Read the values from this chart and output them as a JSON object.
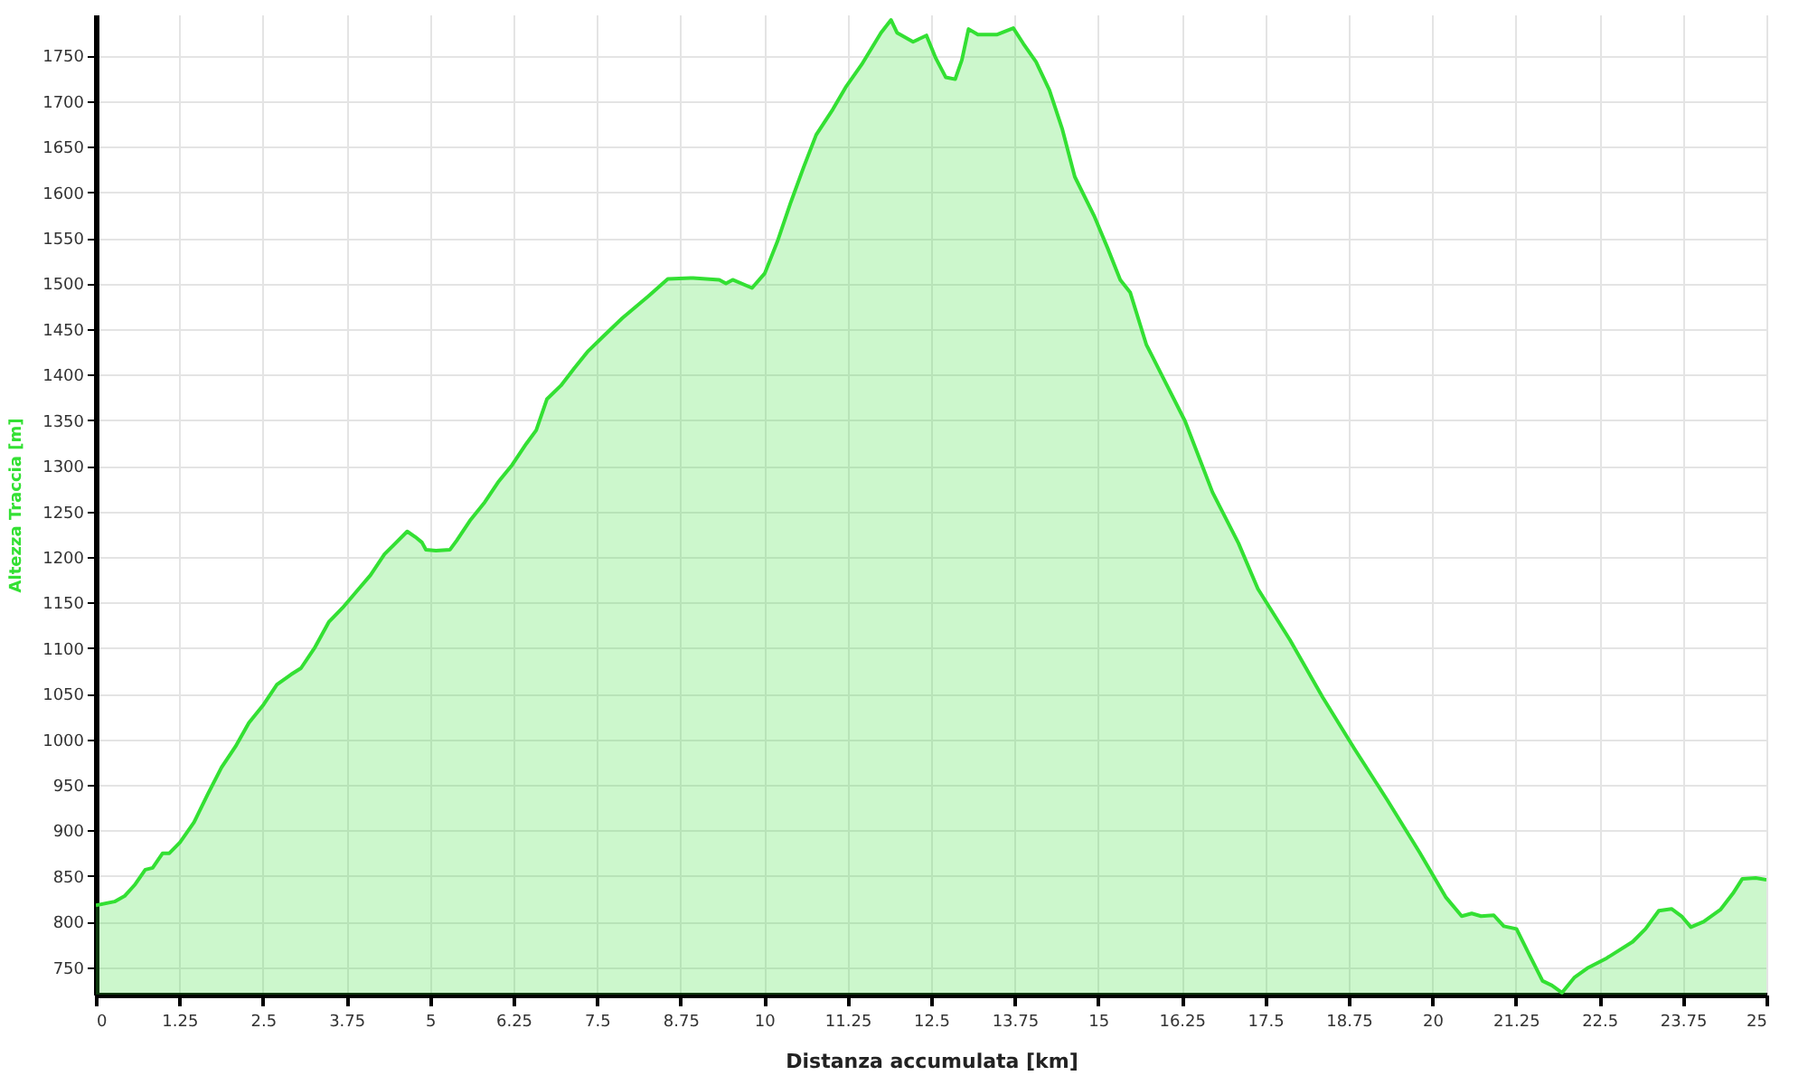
{
  "chart_data": {
    "type": "area",
    "xlabel": "Distanza accumulata [km]",
    "ylabel": "Altezza Traccia [m]",
    "color": "#33e033",
    "x": [
      0,
      0.28,
      0.43,
      0.59,
      0.74,
      0.85,
      1.0,
      1.1,
      1.26,
      1.47,
      1.67,
      1.88,
      2.09,
      2.29,
      2.5,
      2.71,
      2.92,
      3.07,
      3.28,
      3.49,
      3.69,
      3.9,
      4.11,
      4.32,
      4.47,
      4.66,
      4.78,
      4.88,
      4.94,
      5.09,
      5.3,
      5.4,
      5.61,
      5.82,
      6.02,
      6.23,
      6.44,
      6.59,
      6.75,
      6.96,
      7.16,
      7.37,
      7.58,
      7.88,
      8.27,
      8.56,
      8.94,
      9.33,
      9.43,
      9.53,
      9.82,
      10.01,
      10.2,
      10.4,
      10.59,
      10.78,
      11.03,
      11.22,
      11.46,
      11.75,
      11.9,
      11.99,
      12.23,
      12.43,
      12.57,
      12.72,
      12.86,
      12.96,
      13.06,
      13.2,
      13.49,
      13.73,
      13.88,
      14.07,
      14.27,
      14.46,
      14.65,
      14.94,
      15.14,
      15.33,
      15.48,
      15.72,
      16.01,
      16.3,
      16.71,
      17.1,
      17.39,
      17.87,
      18.36,
      18.84,
      19.33,
      19.81,
      20.2,
      20.44,
      20.59,
      20.73,
      20.92,
      21.07,
      21.26,
      21.45,
      21.65,
      21.79,
      21.94,
      22.13,
      22.32,
      22.61,
      23.0,
      23.19,
      23.39,
      23.58,
      23.73,
      23.87,
      24.06,
      24.31,
      24.5,
      24.64,
      24.84,
      25
    ],
    "values": [
      818,
      822,
      828,
      841,
      857,
      859,
      875,
      875,
      887,
      909,
      939,
      969,
      992,
      1018,
      1037,
      1060,
      1071,
      1078,
      1101,
      1129,
      1144,
      1162,
      1180,
      1203,
      1214,
      1228,
      1222,
      1216,
      1208,
      1207,
      1208,
      1218,
      1241,
      1260,
      1282,
      1301,
      1324,
      1339,
      1373,
      1388,
      1407,
      1426,
      1441,
      1462,
      1486,
      1505,
      1506,
      1504,
      1500,
      1504,
      1495,
      1511,
      1546,
      1589,
      1627,
      1663,
      1691,
      1715,
      1740,
      1775,
      1789,
      1775,
      1765,
      1772,
      1747,
      1726,
      1724,
      1745,
      1779,
      1773,
      1773,
      1780,
      1763,
      1743,
      1712,
      1670,
      1617,
      1574,
      1539,
      1504,
      1490,
      1433,
      1391,
      1349,
      1271,
      1215,
      1165,
      1109,
      1046,
      989,
      933,
      876,
      827,
      806,
      809,
      806,
      807,
      795,
      792,
      764,
      735,
      730,
      722,
      739,
      749,
      760,
      778,
      792,
      812,
      814,
      806,
      794,
      800,
      813,
      831,
      847,
      848,
      846
    ],
    "xlim": [
      0,
      25
    ],
    "xticks": [
      0,
      1.25,
      2.5,
      3.75,
      5,
      6.25,
      7.5,
      8.75,
      10,
      11.25,
      12.5,
      13.75,
      15,
      16.25,
      17.5,
      18.75,
      20,
      21.25,
      22.5,
      23.75,
      25
    ],
    "ylim": [
      720,
      1795
    ],
    "yticks": [
      750,
      800,
      850,
      900,
      950,
      1000,
      1050,
      1100,
      1150,
      1200,
      1250,
      1300,
      1350,
      1400,
      1450,
      1500,
      1550,
      1600,
      1650,
      1700,
      1750
    ],
    "grid": true
  }
}
